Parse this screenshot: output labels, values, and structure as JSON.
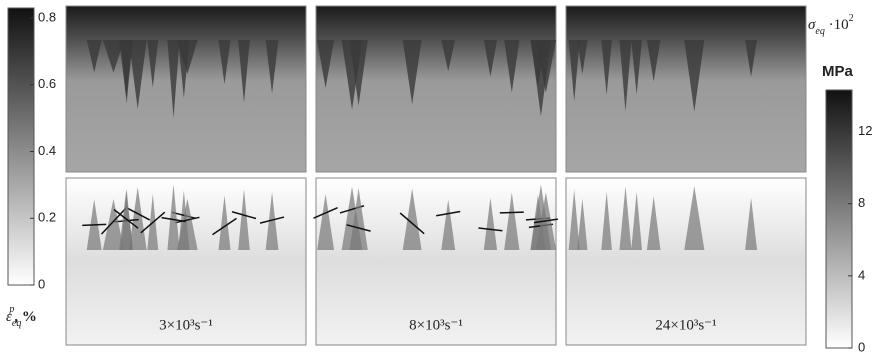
{
  "left_colorbar": {
    "symbol": "ε",
    "sub": "eq",
    "sup": "p",
    "unit": ", %",
    "ylim": [
      0,
      0.83
    ],
    "ticks": [
      0,
      0.2,
      0.4,
      0.6,
      0.8
    ]
  },
  "right_colorbar": {
    "symbol": "σ",
    "sub": "eq",
    "factor": " ·10",
    "factor_sup": "2",
    "unit": "MPa",
    "ylim": [
      0,
      14.3
    ],
    "ticks": [
      0,
      4,
      8,
      12
    ]
  },
  "panels": [
    {
      "label": "3×10³s⁻¹"
    },
    {
      "label": "8×10³s⁻¹"
    },
    {
      "label": "24×10³s⁻¹"
    }
  ]
}
